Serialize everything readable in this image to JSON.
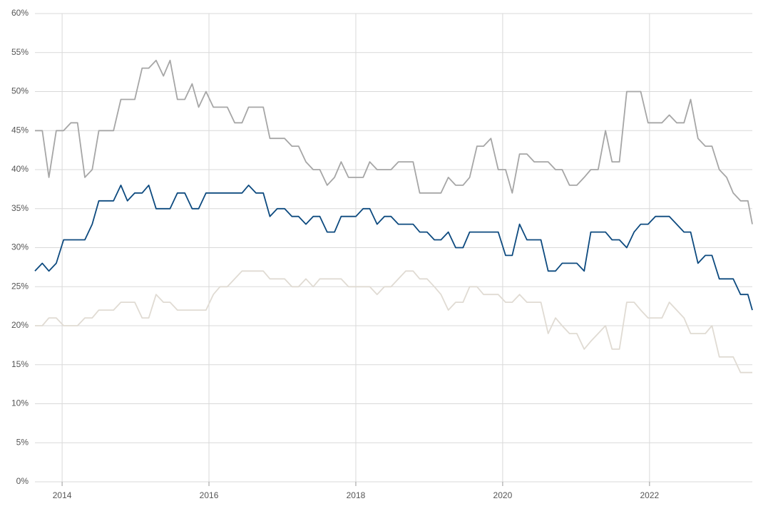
{
  "chart_data": {
    "type": "line",
    "x": [
      2013.63,
      2013.73,
      2013.82,
      2013.92,
      2014.02,
      2014.12,
      2014.21,
      2014.31,
      2014.41,
      2014.5,
      2014.6,
      2014.7,
      2014.8,
      2014.89,
      2014.99,
      2015.09,
      2015.18,
      2015.28,
      2015.38,
      2015.47,
      2015.57,
      2015.67,
      2015.77,
      2015.86,
      2015.96,
      2016.06,
      2016.15,
      2016.25,
      2016.35,
      2016.45,
      2016.54,
      2016.64,
      2016.74,
      2016.83,
      2016.93,
      2017.03,
      2017.13,
      2017.22,
      2017.32,
      2017.42,
      2017.51,
      2017.61,
      2017.71,
      2017.8,
      2017.9,
      2018.0,
      2018.1,
      2018.19,
      2018.29,
      2018.39,
      2018.48,
      2018.58,
      2018.68,
      2018.78,
      2018.87,
      2018.97,
      2019.07,
      2019.16,
      2019.26,
      2019.36,
      2019.46,
      2019.55,
      2019.65,
      2019.74,
      2019.84,
      2019.94,
      2020.04,
      2020.13,
      2020.23,
      2020.33,
      2020.43,
      2020.52,
      2020.62,
      2020.72,
      2020.81,
      2020.91,
      2021.01,
      2021.11,
      2021.2,
      2021.3,
      2021.4,
      2021.49,
      2021.59,
      2021.69,
      2021.79,
      2021.88,
      2021.98,
      2022.08,
      2022.17,
      2022.27,
      2022.37,
      2022.47,
      2022.56,
      2022.66,
      2022.76,
      2022.85,
      2022.95,
      2023.05,
      2023.14,
      2023.24,
      2023.34,
      2023.4
    ],
    "series": [
      {
        "color": "#a6a6a6",
        "values": [
          45,
          45,
          39,
          45,
          45,
          46,
          46,
          39,
          40,
          45,
          45,
          45,
          49,
          49,
          49,
          53,
          53,
          54,
          52,
          54,
          49,
          49,
          51,
          48,
          50,
          48,
          48,
          48,
          46,
          46,
          48,
          48,
          48,
          44,
          44,
          44,
          43,
          43,
          41,
          40,
          40,
          38,
          39,
          41,
          39,
          39,
          39,
          41,
          40,
          40,
          40,
          41,
          41,
          41,
          37,
          37,
          37,
          37,
          39,
          38,
          38,
          39,
          43,
          43,
          44,
          40,
          40,
          37,
          42,
          42,
          41,
          41,
          41,
          40,
          40,
          38,
          38,
          39,
          40,
          40,
          45,
          41,
          41,
          50,
          50,
          50,
          46,
          46,
          46,
          47,
          46,
          46,
          49,
          44,
          43,
          43,
          40,
          39,
          37,
          36,
          36,
          33
        ]
      },
      {
        "color": "#0d4a7f",
        "values": [
          27,
          28,
          27,
          28,
          31,
          31,
          31,
          31,
          33,
          36,
          36,
          36,
          38,
          36,
          37,
          37,
          38,
          35,
          35,
          35,
          37,
          37,
          35,
          35,
          37,
          37,
          37,
          37,
          37,
          37,
          38,
          37,
          37,
          34,
          35,
          35,
          34,
          34,
          33,
          34,
          34,
          32,
          32,
          34,
          34,
          34,
          35,
          35,
          33,
          34,
          34,
          33,
          33,
          33,
          32,
          32,
          31,
          31,
          32,
          30,
          30,
          32,
          32,
          32,
          32,
          32,
          29,
          29,
          33,
          31,
          31,
          31,
          27,
          27,
          28,
          28,
          28,
          27,
          32,
          32,
          32,
          31,
          31,
          30,
          32,
          33,
          33,
          34,
          34,
          34,
          33,
          32,
          32,
          28,
          29,
          29,
          26,
          26,
          26,
          24,
          24,
          22
        ]
      },
      {
        "color": "#e0dbd3",
        "values": [
          20,
          20,
          21,
          21,
          20,
          20,
          20,
          21,
          21,
          22,
          22,
          22,
          23,
          23,
          23,
          21,
          21,
          24,
          23,
          23,
          22,
          22,
          22,
          22,
          22,
          24,
          25,
          25,
          26,
          27,
          27,
          27,
          27,
          26,
          26,
          26,
          25,
          25,
          26,
          25,
          26,
          26,
          26,
          26,
          25,
          25,
          25,
          25,
          24,
          25,
          25,
          26,
          27,
          27,
          26,
          26,
          25,
          24,
          22,
          23,
          23,
          25,
          25,
          24,
          24,
          24,
          23,
          23,
          24,
          23,
          23,
          23,
          19,
          21,
          20,
          19,
          19,
          17,
          18,
          19,
          20,
          17,
          17,
          23,
          23,
          22,
          21,
          21,
          21,
          23,
          22,
          21,
          19,
          19,
          19,
          20,
          16,
          16,
          16,
          14,
          14,
          14
        ]
      }
    ],
    "xlim": [
      2013.63,
      2023.4
    ],
    "ylim": [
      0,
      60
    ],
    "xticks": [
      2014,
      2016,
      2018,
      2020,
      2022
    ],
    "yticks": [
      {
        "value": 0,
        "label": "0%"
      },
      {
        "value": 5,
        "label": "5%"
      },
      {
        "value": 10,
        "label": "10%"
      },
      {
        "value": 15,
        "label": "15%"
      },
      {
        "value": 20,
        "label": "20%"
      },
      {
        "value": 25,
        "label": "25%"
      },
      {
        "value": 30,
        "label": "30%"
      },
      {
        "value": 35,
        "label": "35%"
      },
      {
        "value": 40,
        "label": "40%"
      },
      {
        "value": 45,
        "label": "45%"
      },
      {
        "value": 50,
        "label": "50%"
      },
      {
        "value": 55,
        "label": "55%"
      },
      {
        "value": 60,
        "label": "60%"
      }
    ],
    "grid": true
  }
}
